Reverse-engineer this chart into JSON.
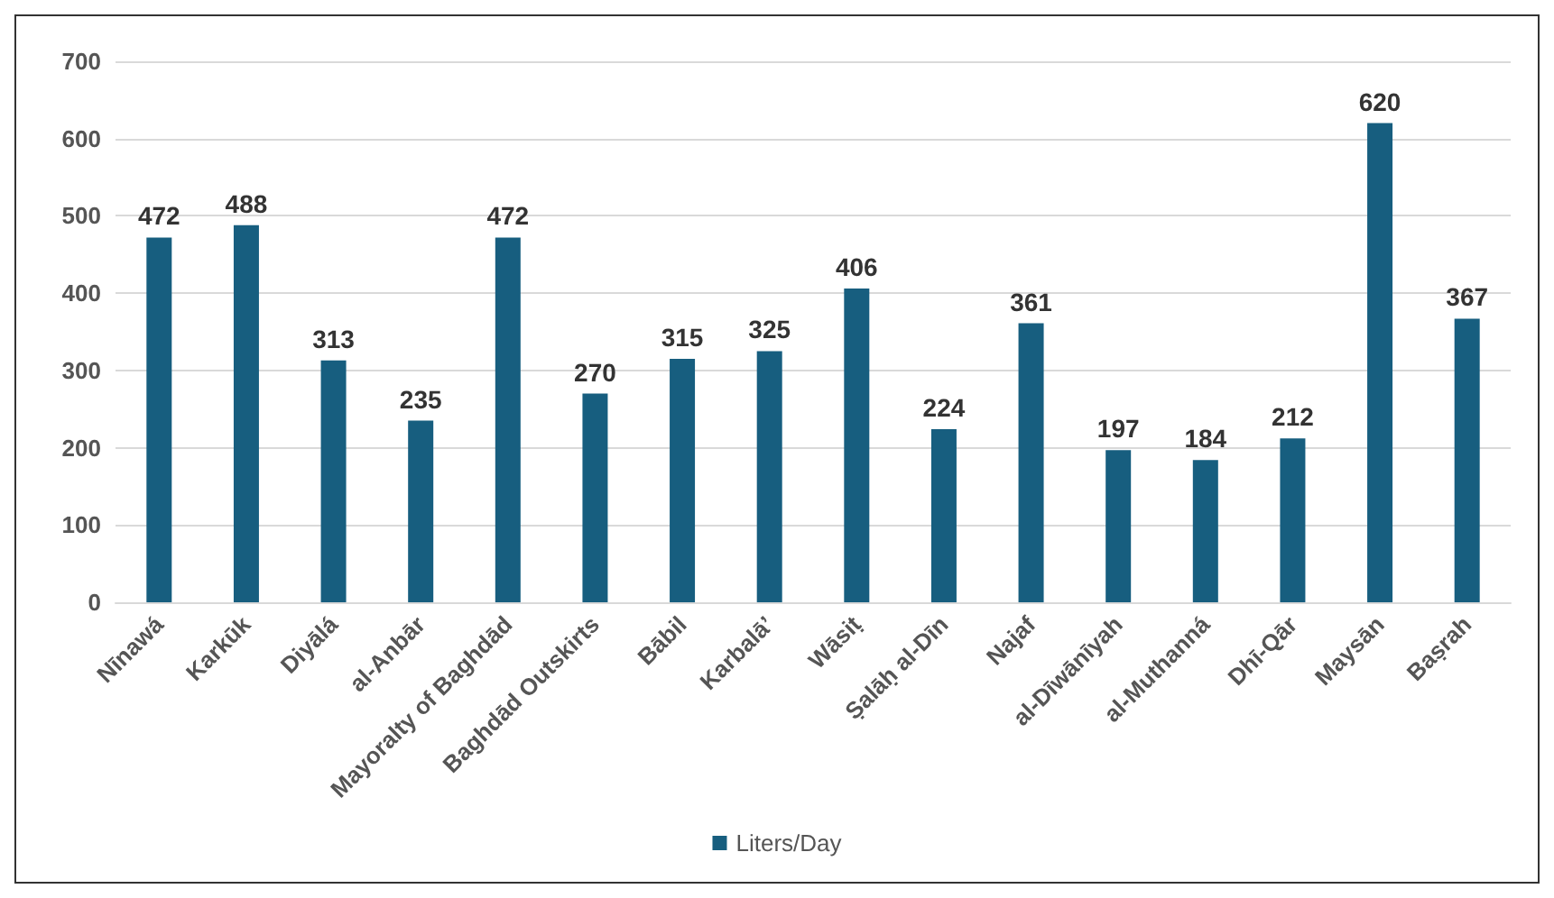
{
  "chart_data": {
    "type": "bar",
    "categories": [
      "Nīnawá",
      "Karkūk",
      "Diyālá",
      "al-Anbār",
      "Mayoralty of Baghdād",
      "Baghdād Outskirts",
      "Bābil",
      "Karbalā’",
      "Wāsiṭ",
      "Ṣalāḥ al-Dīn",
      "Najaf",
      "al-Dīwānīyah",
      "al-Muthanná",
      "Dhī-Qār",
      "Maysān",
      "Baṣrah"
    ],
    "series": [
      {
        "name": "Liters/Day",
        "color": "#175e7f",
        "values": [
          472,
          488,
          313,
          235,
          472,
          270,
          315,
          325,
          406,
          224,
          361,
          197,
          184,
          212,
          620,
          367
        ]
      }
    ],
    "ylim": [
      0,
      700
    ],
    "yticks": [
      0,
      100,
      200,
      300,
      400,
      500,
      600,
      700
    ],
    "grid": "y",
    "legend": "bottom",
    "data_labels": true
  }
}
